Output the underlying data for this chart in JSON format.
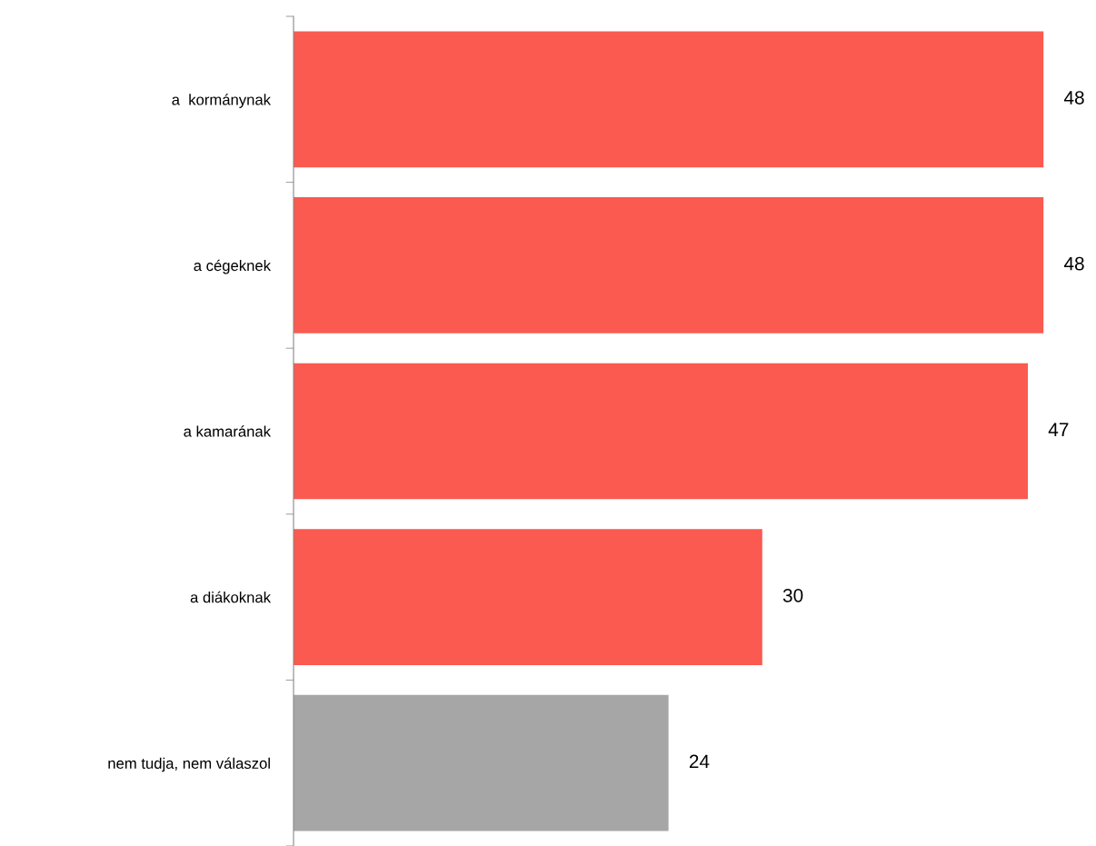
{
  "chart_data": {
    "type": "bar",
    "orientation": "horizontal",
    "categories": [
      "a  kormánynak",
      "a cégeknek",
      "a kamarának",
      "a diákoknak",
      "nem tudja, nem válaszol"
    ],
    "values": [
      48,
      48,
      47,
      30,
      24
    ],
    "colors": [
      "#fa5a4f",
      "#fa5a4f",
      "#fa5a4f",
      "#fa5a4f",
      "#a6a6a6"
    ],
    "data_labels": true,
    "grid": false,
    "legend": false,
    "tick_labels": "y"
  }
}
